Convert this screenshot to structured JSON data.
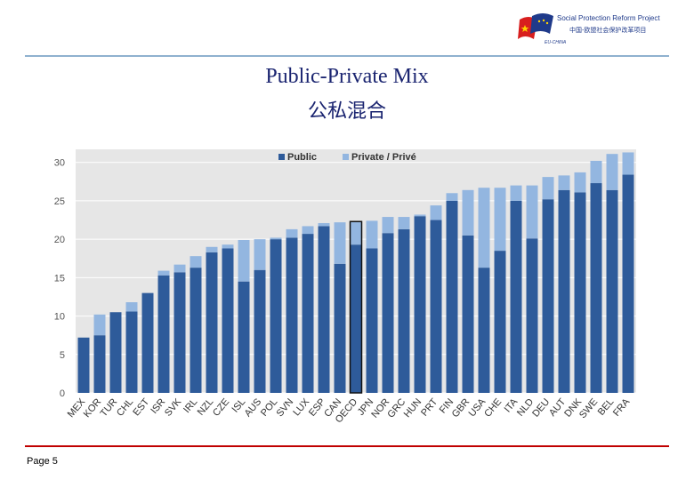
{
  "header": {
    "logo_en": "Social Protection Reform Project",
    "logo_cn": "中国-欧盟社会保护改革项目",
    "logo_tag": "EU-CHINA"
  },
  "slide": {
    "title_en": "Public-Private Mix",
    "title_cn": "公私混合",
    "page_label": "Page 5"
  },
  "colors": {
    "public": "#2e5b9a",
    "private": "#93b6e0",
    "plot_bg": "#e6e6e6",
    "grid": "#ffffff",
    "title": "#1a2470",
    "rule_top": "#8fb1cf",
    "rule_bottom": "#c00000"
  },
  "chart_data": {
    "type": "bar",
    "stacked": true,
    "title": "",
    "xlabel": "",
    "ylabel": "",
    "ylim": [
      0,
      31.7
    ],
    "yticks": [
      0,
      5,
      10,
      15,
      20,
      25,
      30
    ],
    "legend_position": "top",
    "highlight": "OECD",
    "categories": [
      "MEX",
      "KOR",
      "TUR",
      "CHL",
      "EST",
      "ISR",
      "SVK",
      "IRL",
      "NZL",
      "CZE",
      "ISL",
      "AUS",
      "POL",
      "SVN",
      "LUX",
      "ESP",
      "CAN",
      "OECD",
      "JPN",
      "NOR",
      "GRC",
      "HUN",
      "PRT",
      "FIN",
      "GBR",
      "USA",
      "CHE",
      "ITA",
      "NLD",
      "DEU",
      "AUT",
      "DNK",
      "SWE",
      "BEL",
      "FRA"
    ],
    "series": [
      {
        "name": "Public",
        "values": [
          7.2,
          7.5,
          10.5,
          10.6,
          13.0,
          15.3,
          15.7,
          16.3,
          18.3,
          18.8,
          14.5,
          16.0,
          20.0,
          20.2,
          20.7,
          21.7,
          16.8,
          19.3,
          18.8,
          20.8,
          21.3,
          23.0,
          22.5,
          25.0,
          20.5,
          16.3,
          18.5,
          25.0,
          20.1,
          25.2,
          26.4,
          26.1,
          27.3,
          26.4,
          28.4
        ]
      },
      {
        "name": "Private / Privé",
        "values": [
          0,
          2.7,
          0,
          1.2,
          0,
          0.6,
          1.0,
          1.5,
          0.7,
          0.5,
          5.4,
          4.0,
          0.2,
          1.1,
          1.0,
          0.4,
          5.4,
          3.0,
          3.6,
          2.1,
          1.6,
          0.2,
          1.9,
          1.0,
          5.9,
          10.4,
          8.2,
          2.0,
          6.9,
          2.9,
          1.9,
          2.6,
          2.9,
          4.7,
          2.9
        ]
      }
    ]
  }
}
